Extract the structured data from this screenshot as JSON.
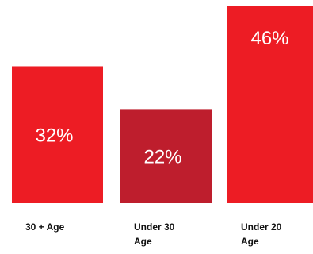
{
  "chart_data": {
    "type": "bar",
    "categories": [
      "30 + Age",
      "Under 30 Age",
      "Under 20 Age"
    ],
    "category_lines": [
      [
        "30 + Age"
      ],
      [
        "Under 30",
        "Age"
      ],
      [
        "Under 20",
        "Age"
      ]
    ],
    "values": [
      32,
      22,
      46
    ],
    "value_labels": [
      "32%",
      "22%",
      "46%"
    ],
    "ylim": [
      0,
      46
    ],
    "grid": false,
    "legend": "none",
    "colors": [
      "#ed1c24",
      "#be1e2d",
      "#ed1c24"
    ],
    "title": "",
    "xlabel": "",
    "ylabel": ""
  }
}
